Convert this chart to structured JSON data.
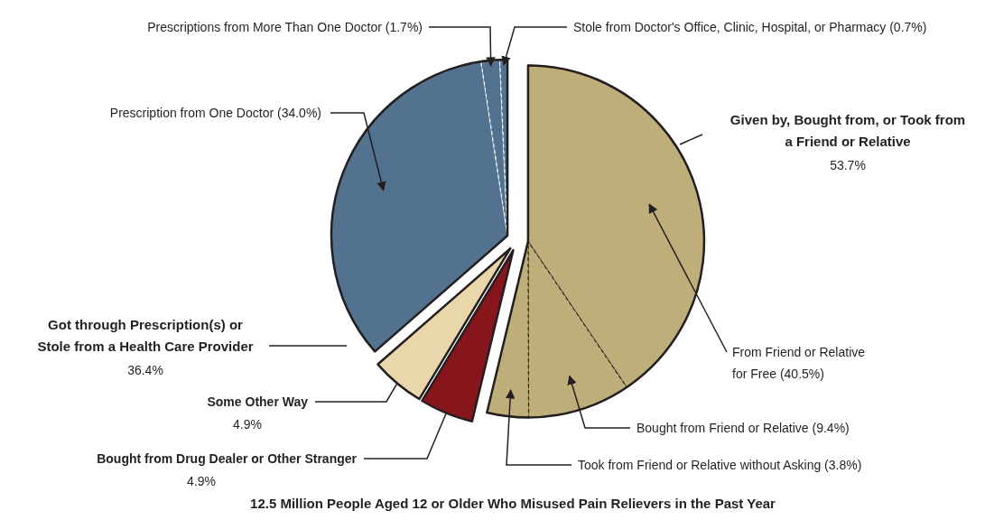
{
  "chart_data": {
    "type": "pie",
    "title": "12.5 Million People Aged 12 or Older Who Misused Pain Relievers in the Past Year",
    "categories": [
      "From Friend or Relative for Free",
      "Bought from Friend or Relative",
      "Took from Friend or Relative without Asking",
      "Bought from Drug Dealer or Other Stranger",
      "Some Other Way",
      "Prescription from One Doctor",
      "Prescriptions from More Than One Doctor",
      "Stole from Doctor's Office, Clinic, Hospital, or Pharmacy"
    ],
    "values": [
      40.5,
      9.4,
      3.8,
      4.9,
      4.9,
      34.0,
      1.7,
      0.7
    ],
    "value_labels": [
      "(40.5%)",
      "(9.4%)",
      "(3.8%)",
      "4.9%",
      "4.9%",
      "(34.0%)",
      "(1.7%)",
      "(0.7%)"
    ],
    "colors": [
      "#bdae7a",
      "#bdae7a",
      "#bdae7a",
      "#86161c",
      "#e9d6ab",
      "#527290",
      "#527290",
      "#527290"
    ],
    "annotations": [
      "Given by, Bought from, or Took from a Friend or Relative",
      "53.7%",
      "Got through Prescription(s) or Stole from a Health Care Provider",
      "36.4%"
    ]
  }
}
